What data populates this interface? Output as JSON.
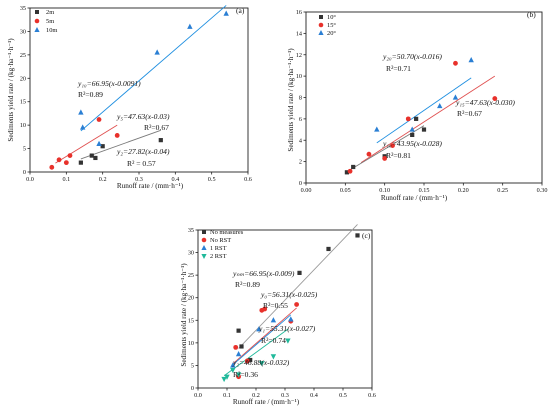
{
  "chart_data": [
    {
      "type": "scatter",
      "panel_label": "(a)",
      "xlabel": "Runoff rate / (mm·h⁻¹)",
      "ylabel": "Sediments yield rate / (kg·ha⁻¹·h⁻¹)",
      "xlim": [
        0,
        0.6
      ],
      "ylim": [
        0,
        35
      ],
      "xticks": [
        "0.0",
        "0.1",
        "0.2",
        "0.3",
        "0.4",
        "0.5",
        "0.6"
      ],
      "yticks": [
        "0",
        "5",
        "10",
        "15",
        "20",
        "25",
        "30",
        "35"
      ],
      "legend_position": "top-left",
      "series": [
        {
          "name": "2m",
          "marker": "square",
          "color": "#333333",
          "points": [
            [
              0.14,
              2.0
            ],
            [
              0.17,
              3.5
            ],
            [
              0.18,
              3.0
            ],
            [
              0.2,
              5.5
            ],
            [
              0.36,
              6.8
            ]
          ]
        },
        {
          "name": "5m",
          "marker": "circle",
          "color": "#e8312b",
          "points": [
            [
              0.06,
              1.0
            ],
            [
              0.08,
              2.6
            ],
            [
              0.1,
              2.0
            ],
            [
              0.11,
              3.5
            ],
            [
              0.19,
              11.2
            ],
            [
              0.24,
              7.8
            ]
          ]
        },
        {
          "name": "10m",
          "marker": "triangle",
          "color": "#2a7fd4",
          "points": [
            [
              0.14,
              12.7
            ],
            [
              0.145,
              9.5
            ],
            [
              0.19,
              6.0
            ],
            [
              0.35,
              25.5
            ],
            [
              0.44,
              31.0
            ],
            [
              0.54,
              33.8
            ]
          ]
        }
      ],
      "fits": [
        {
          "color": "#1f8fe0",
          "x_range": [
            0.14,
            0.54
          ],
          "a": 66.95,
          "b": 0.0091
        },
        {
          "color": "#e05050",
          "x_range": [
            0.07,
            0.24
          ],
          "a": 47.63,
          "b": 0.03
        },
        {
          "color": "#7a7a7a",
          "x_range": [
            0.14,
            0.36
          ],
          "a": 27.82,
          "b": 0.04
        }
      ],
      "annotations": [
        {
          "eq": "y₁₀=66.95(x-0.0091)",
          "r2": "R²=0.89"
        },
        {
          "eq": "y₅=47.63(x-0.03)",
          "r2": "R²=0.67"
        },
        {
          "eq": "y₂=27.82(x-0.04)",
          "r2": "R² = 0.57"
        }
      ]
    },
    {
      "type": "scatter",
      "panel_label": "(b)",
      "xlabel": "Runoff rate / (mm·h⁻¹)",
      "ylabel": "Sediments yield rate / (kg·ha⁻¹·h⁻¹)",
      "xlim": [
        0,
        0.3
      ],
      "ylim": [
        0,
        16
      ],
      "xticks": [
        "0.00",
        "0.05",
        "0.10",
        "0.15",
        "0.20",
        "0.25",
        "0.30"
      ],
      "yticks": [
        "0",
        "2",
        "4",
        "6",
        "8",
        "10",
        "12",
        "14",
        "16"
      ],
      "legend_position": "top-left",
      "series": [
        {
          "name": "10°",
          "marker": "square",
          "color": "#333333",
          "points": [
            [
              0.052,
              1.0
            ],
            [
              0.06,
              1.5
            ],
            [
              0.1,
              2.5
            ],
            [
              0.135,
              4.5
            ],
            [
              0.15,
              5.0
            ],
            [
              0.14,
              6.0
            ]
          ]
        },
        {
          "name": "15°",
          "marker": "circle",
          "color": "#e8312b",
          "points": [
            [
              0.056,
              1.1
            ],
            [
              0.08,
              2.7
            ],
            [
              0.1,
              2.3
            ],
            [
              0.11,
              3.5
            ],
            [
              0.13,
              6.0
            ],
            [
              0.19,
              11.2
            ],
            [
              0.24,
              7.9
            ]
          ]
        },
        {
          "name": "20°",
          "marker": "triangle",
          "color": "#2a7fd4",
          "points": [
            [
              0.09,
              5.0
            ],
            [
              0.135,
              5.0
            ],
            [
              0.17,
              7.2
            ],
            [
              0.19,
              8.0
            ],
            [
              0.21,
              11.5
            ]
          ]
        }
      ],
      "fits": [
        {
          "color": "#1f8fe0",
          "x_range": [
            0.09,
            0.21
          ],
          "a": 50.7,
          "b": 0.016
        },
        {
          "color": "#e05050",
          "x_range": [
            0.07,
            0.24
          ],
          "a": 47.63,
          "b": 0.03
        },
        {
          "color": "#7a7a7a",
          "x_range": [
            0.05,
            0.15
          ],
          "a": 43.95,
          "b": 0.028
        }
      ],
      "annotations": [
        {
          "eq": "y₂₀=50.70(x-0.016)",
          "r2": "R²=0.71"
        },
        {
          "eq": "y₁₅=47.63(x-0.030)",
          "r2": "R²=0.67"
        },
        {
          "eq": "y₁₀=43.95(x-0.028)",
          "r2": "R²=0.81"
        }
      ]
    },
    {
      "type": "scatter",
      "panel_label": "(c)",
      "xlabel": "Runoff rate / (mm·h⁻¹)",
      "ylabel": "Sediments yield rate / (kg·ha⁻¹·h⁻¹)",
      "xlim": [
        0,
        0.6
      ],
      "ylim": [
        0,
        35
      ],
      "xticks": [
        "0.0",
        "0.1",
        "0.2",
        "0.3",
        "0.4",
        "0.5",
        "0.6"
      ],
      "yticks": [
        "0",
        "5",
        "10",
        "15",
        "20",
        "25",
        "30",
        "35"
      ],
      "legend_position": "top-left",
      "series": [
        {
          "name": "No measures",
          "marker": "square",
          "color": "#333333",
          "points": [
            [
              0.14,
              12.7
            ],
            [
              0.15,
              9.2
            ],
            [
              0.35,
              25.5
            ],
            [
              0.45,
              30.8
            ],
            [
              0.55,
              33.8
            ],
            [
              0.18,
              6.2
            ]
          ]
        },
        {
          "name": "No RST",
          "marker": "circle",
          "color": "#e8312b",
          "points": [
            [
              0.13,
              9.0
            ],
            [
              0.14,
              2.5
            ],
            [
              0.17,
              6.0
            ],
            [
              0.22,
              17.2
            ],
            [
              0.23,
              17.5
            ],
            [
              0.34,
              18.5
            ],
            [
              0.32,
              14.8
            ]
          ]
        },
        {
          "name": "1 RST",
          "marker": "triangle",
          "color": "#2a7fd4",
          "points": [
            [
              0.12,
              5.0
            ],
            [
              0.14,
              7.5
            ],
            [
              0.21,
              13.0
            ],
            [
              0.26,
              15.0
            ],
            [
              0.32,
              15.2
            ]
          ]
        },
        {
          "name": "2 RST",
          "marker": "triangle-down",
          "color": "#1fb99a",
          "points": [
            [
              0.09,
              2.0
            ],
            [
              0.1,
              2.5
            ],
            [
              0.12,
              4.0
            ],
            [
              0.14,
              3.0
            ],
            [
              0.26,
              7.0
            ],
            [
              0.31,
              10.5
            ],
            [
              0.22,
              5.5
            ]
          ]
        }
      ],
      "fits": [
        {
          "color": "#9a9a9a",
          "x_range": [
            0.14,
            0.55
          ],
          "a": 66.95,
          "b": 0.009
        },
        {
          "color": "#e05050",
          "x_range": [
            0.12,
            0.34
          ],
          "a": 56.31,
          "b": 0.025
        },
        {
          "color": "#1f8fe0",
          "x_range": [
            0.12,
            0.32
          ],
          "a": 55.31,
          "b": 0.027
        },
        {
          "color": "#1fb99a",
          "x_range": [
            0.09,
            0.31
          ],
          "a": 46.88,
          "b": 0.032
        }
      ],
      "annotations": [
        {
          "eq": "yₙₘ=66.95(x-0.009)",
          "r2": "R²=0.89"
        },
        {
          "eq": "y₀=56.31(x-0.025)",
          "r2": "R²=0.55"
        },
        {
          "eq": "y₁=55.31(x-0.027)",
          "r2": "R²=0.74"
        },
        {
          "eq": "y₂=46.88(x-0.032)",
          "r2": "R²=0.36"
        }
      ]
    }
  ]
}
